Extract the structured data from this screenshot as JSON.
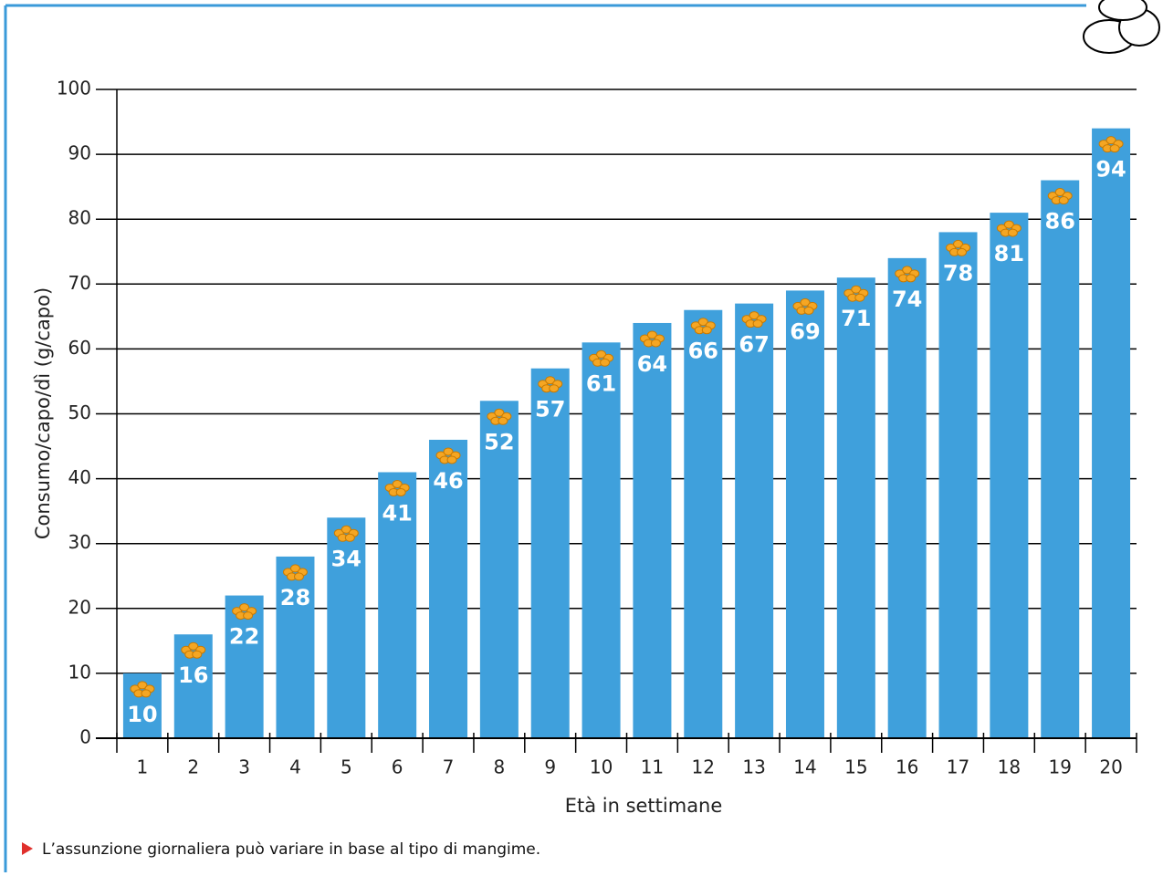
{
  "chart_data": {
    "type": "bar",
    "x_label": "Età in settimane",
    "y_label": "Consumo/capo/dì (g/capo)",
    "footnote": "L’assunzione giornaliera può variare in base al tipo di mangime.",
    "categories": [
      "1",
      "2",
      "3",
      "4",
      "5",
      "6",
      "7",
      "8",
      "9",
      "10",
      "11",
      "12",
      "13",
      "14",
      "15",
      "16",
      "17",
      "18",
      "19",
      "20"
    ],
    "values": [
      10,
      16,
      22,
      28,
      34,
      41,
      46,
      52,
      57,
      61,
      64,
      66,
      67,
      69,
      71,
      74,
      78,
      81,
      86,
      94
    ],
    "color": "#3fa0dc",
    "ylim": [
      0,
      100
    ],
    "yticks": [
      0,
      10,
      20,
      30,
      40,
      50,
      60,
      70,
      80,
      90,
      100
    ],
    "grid": true
  }
}
